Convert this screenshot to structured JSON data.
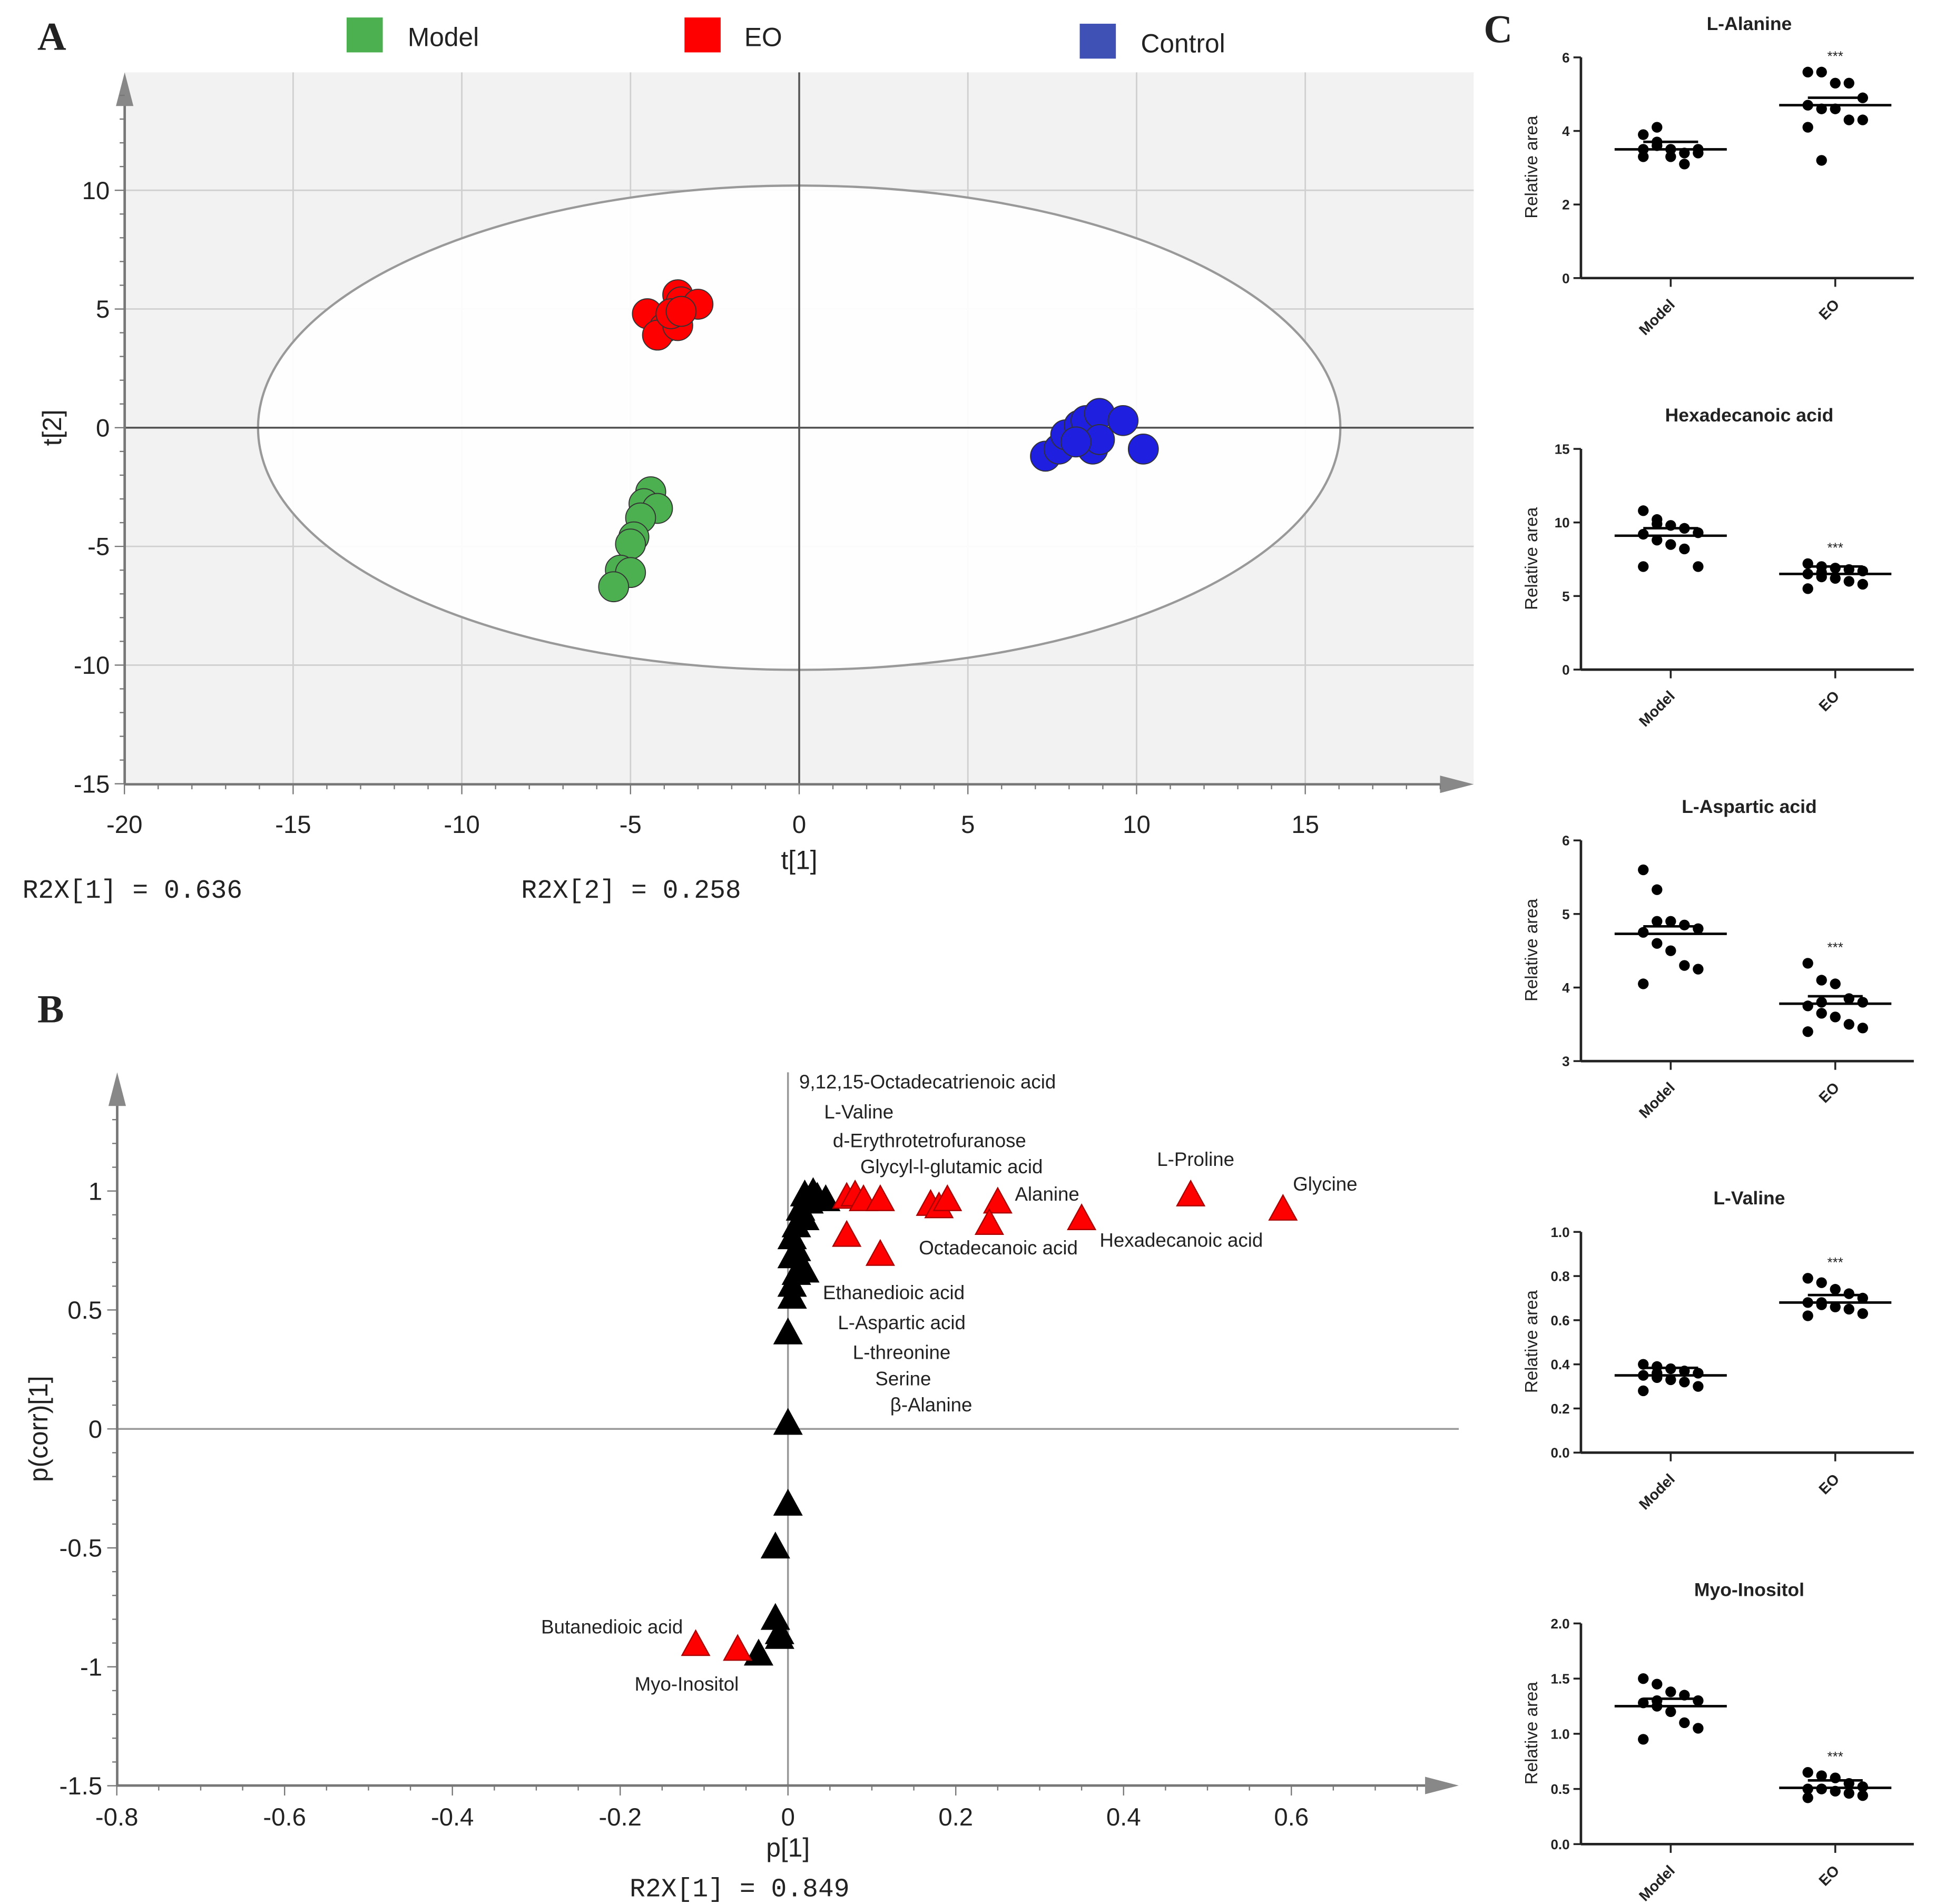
{
  "colors": {
    "model": "#4caf50",
    "eo": "#ff0000",
    "control": "#1f1fe0",
    "black": "#000000",
    "plot_bg": "#f2f2f2"
  },
  "panel_labels": [
    "A",
    "B",
    "C"
  ],
  "legend": [
    {
      "label": "Model",
      "color": "#4caf50"
    },
    {
      "label": "EO",
      "color": "#ff0000"
    },
    {
      "label": "Control",
      "color": "#3f51b5"
    }
  ],
  "chart_data": [
    {
      "type": "scatter",
      "panel": "A",
      "xlabel": "t[1]",
      "ylabel": "t[2]",
      "xlim": [
        -20,
        20
      ],
      "ylim": [
        -15,
        15
      ],
      "xticks": [
        -20,
        -15,
        -10,
        -5,
        0,
        5,
        10,
        15
      ],
      "yticks": [
        -15,
        -10,
        -5,
        0,
        5,
        10
      ],
      "grid": true,
      "ellipse": {
        "cx": 0,
        "cy": 0,
        "rx": 16.04,
        "ry": 10.2
      },
      "footer": [
        "R2X[1] = 0.636",
        "R2X[2] = 0.258"
      ],
      "series": [
        {
          "name": "Model",
          "color": "#4caf50",
          "points": [
            [
              -4.4,
              -2.7
            ],
            [
              -4.6,
              -3.2
            ],
            [
              -4.2,
              -3.4
            ],
            [
              -4.7,
              -3.8
            ],
            [
              -4.9,
              -4.6
            ],
            [
              -5.0,
              -4.9
            ],
            [
              -5.3,
              -6.0
            ],
            [
              -5.0,
              -6.1
            ],
            [
              -5.5,
              -6.7
            ]
          ]
        },
        {
          "name": "EO",
          "color": "#ff0000",
          "points": [
            [
              -4.5,
              4.8
            ],
            [
              -3.6,
              5.6
            ],
            [
              -3.5,
              5.3
            ],
            [
              -3.0,
              5.2
            ],
            [
              -4.0,
              4.2
            ],
            [
              -4.2,
              3.9
            ],
            [
              -3.6,
              4.3
            ],
            [
              -3.8,
              4.8
            ],
            [
              -3.5,
              4.9
            ]
          ]
        },
        {
          "name": "Control",
          "color": "#1f1fe0",
          "points": [
            [
              7.3,
              -1.2
            ],
            [
              7.7,
              -0.9
            ],
            [
              7.9,
              -0.3
            ],
            [
              8.3,
              0.1
            ],
            [
              8.5,
              0.3
            ],
            [
              8.9,
              0.6
            ],
            [
              9.6,
              0.3
            ],
            [
              8.7,
              -0.9
            ],
            [
              8.9,
              -0.5
            ],
            [
              10.2,
              -0.9
            ],
            [
              8.2,
              -0.6
            ]
          ]
        }
      ]
    },
    {
      "type": "scatter",
      "panel": "B",
      "xlabel": "p[1]",
      "ylabel": "p(corr)[1]",
      "xlim": [
        -0.8,
        0.8
      ],
      "ylim": [
        -1.5,
        1.5
      ],
      "xticks": [
        -0.8,
        -0.6,
        -0.4,
        -0.2,
        0,
        0.2,
        0.4,
        0.6
      ],
      "yticks": [
        -1.5,
        -1,
        -0.5,
        0,
        0.5,
        1
      ],
      "grid": false,
      "footer": [
        "R2X[1] = 0.849"
      ],
      "series": [
        {
          "name": "Significant",
          "color": "#ff0000",
          "points": [
            [
              0.07,
              0.97
            ],
            [
              0.08,
              0.98
            ],
            [
              0.09,
              0.96
            ],
            [
              0.11,
              0.96
            ],
            [
              0.17,
              0.94
            ],
            [
              0.18,
              0.93
            ],
            [
              0.19,
              0.96
            ],
            [
              0.25,
              0.95
            ],
            [
              0.24,
              0.86
            ],
            [
              0.35,
              0.88
            ],
            [
              0.48,
              0.98
            ],
            [
              0.59,
              0.92
            ],
            [
              0.07,
              0.81
            ],
            [
              0.11,
              0.73
            ],
            [
              -0.11,
              -0.91
            ],
            [
              -0.06,
              -0.93
            ]
          ]
        },
        {
          "name": "Other",
          "color": "#000000",
          "points": [
            [
              0.0,
              0.4
            ],
            [
              0.0,
              0.02
            ],
            [
              0.0,
              -0.32
            ],
            [
              -0.015,
              -0.5
            ],
            [
              -0.015,
              -0.8
            ],
            [
              -0.01,
              -0.86
            ],
            [
              -0.01,
              -0.88
            ],
            [
              -0.035,
              -0.95
            ],
            [
              0.005,
              0.55
            ],
            [
              0.005,
              0.6
            ],
            [
              0.01,
              0.65
            ],
            [
              0.02,
              0.66
            ],
            [
              0.005,
              0.72
            ],
            [
              0.01,
              0.75
            ],
            [
              0.005,
              0.8
            ],
            [
              0.01,
              0.85
            ],
            [
              0.02,
              0.88
            ],
            [
              0.015,
              0.92
            ],
            [
              0.025,
              0.95
            ],
            [
              0.035,
              0.97
            ],
            [
              0.045,
              0.96
            ],
            [
              0.03,
              0.99
            ],
            [
              0.02,
              0.98
            ]
          ]
        }
      ],
      "annotations": [
        "9,12,15-Octadecatrienoic acid",
        "L-Valine",
        "d-Erythrotetrofuranose",
        "Glycyl-l-glutamic acid",
        "L-Proline",
        "Glycine",
        "Alanine",
        "Hexadecanoic acid",
        "Octadecanoic acid",
        "Ethanedioic acid",
        "L-Aspartic acid",
        "L-threonine",
        "Serine",
        "β-Alanine",
        "Butanedioic acid",
        "Myo-Inositol"
      ]
    },
    {
      "type": "scatter",
      "panel": "C",
      "ylabel": "Relative area",
      "categories": [
        "Model",
        "EO"
      ],
      "significance": "***",
      "plots": [
        {
          "title": "L-Alanine",
          "ylim": [
            0,
            6
          ],
          "yticks": [
            "0",
            "2",
            "4",
            "6"
          ],
          "model": [
            3.3,
            3.6,
            3.3,
            3.1,
            3.5,
            3.9,
            4.1,
            3.5,
            3.4,
            3.4,
            3.5,
            3.7
          ],
          "eo": [
            5.6,
            5.6,
            5.3,
            5.3,
            4.9,
            4.7,
            4.6,
            4.6,
            4.3,
            4.3,
            4.1,
            3.2
          ],
          "means": [
            3.5,
            4.7
          ]
        },
        {
          "title": "Hexadecanoic acid",
          "ylim": [
            0,
            15
          ],
          "yticks": [
            "0",
            "5",
            "10",
            "15"
          ],
          "model": [
            10.8,
            10.2,
            9.8,
            9.6,
            9.3,
            9.2,
            8.8,
            8.5,
            8.2,
            7.0,
            7.0,
            9.9
          ],
          "eo": [
            7.2,
            7.0,
            6.9,
            6.8,
            6.7,
            6.5,
            6.3,
            6.2,
            6.0,
            5.8,
            5.5,
            6.6
          ],
          "means": [
            9.1,
            6.5
          ]
        },
        {
          "title": "L-Aspartic acid",
          "ylim": [
            3,
            6
          ],
          "yticks": [
            "3",
            "4",
            "5",
            "6"
          ],
          "model": [
            5.6,
            5.33,
            4.9,
            4.85,
            4.8,
            4.75,
            4.6,
            4.5,
            4.3,
            4.25,
            4.05,
            4.9
          ],
          "eo": [
            4.33,
            4.1,
            4.05,
            3.85,
            3.8,
            3.75,
            3.65,
            3.6,
            3.5,
            3.45,
            3.4,
            3.8
          ],
          "means": [
            4.73,
            3.78
          ]
        },
        {
          "title": "L-Valine",
          "ylim": [
            0,
            1
          ],
          "yticks": [
            "0.0",
            "0.2",
            "0.4",
            "0.6",
            "0.8",
            "1.0"
          ],
          "model": [
            0.4,
            0.39,
            0.38,
            0.37,
            0.36,
            0.35,
            0.34,
            0.33,
            0.32,
            0.3,
            0.28,
            0.36
          ],
          "eo": [
            0.79,
            0.77,
            0.74,
            0.72,
            0.7,
            0.68,
            0.67,
            0.66,
            0.65,
            0.63,
            0.62,
            0.68
          ],
          "means": [
            0.35,
            0.68
          ]
        },
        {
          "title": "Myo-Inositol",
          "ylim": [
            0,
            2
          ],
          "yticks": [
            "0.0",
            "0.5",
            "1.0",
            "1.5",
            "2.0"
          ],
          "model": [
            1.5,
            1.45,
            1.38,
            1.35,
            1.3,
            1.28,
            1.25,
            1.2,
            1.1,
            1.05,
            0.95,
            1.3
          ],
          "eo": [
            0.65,
            0.62,
            0.6,
            0.55,
            0.52,
            0.5,
            0.5,
            0.48,
            0.46,
            0.44,
            0.42,
            0.5
          ],
          "means": [
            1.25,
            0.51
          ]
        }
      ]
    }
  ]
}
